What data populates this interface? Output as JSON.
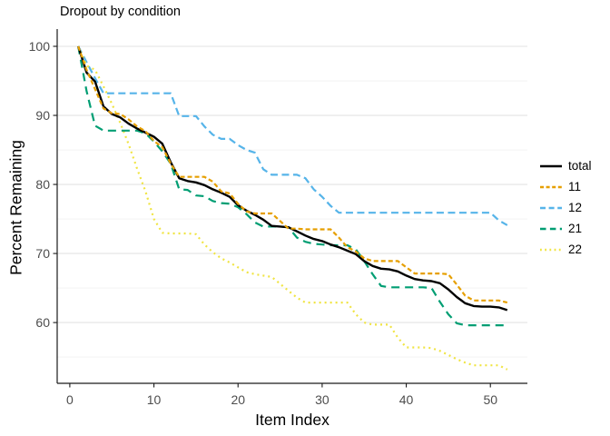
{
  "title": "Dropout by condition",
  "chart_data": {
    "type": "line",
    "title": "Dropout by condition",
    "xlabel": "Item Index",
    "ylabel": "Percent Remaining",
    "x_ticks": [
      0,
      10,
      20,
      30,
      40,
      50
    ],
    "y_ticks": [
      100,
      90,
      80,
      70,
      60
    ],
    "y_minor_ticks": [
      95,
      85,
      75,
      65,
      55
    ],
    "xlim": [
      -1.5,
      54.4
    ],
    "ylim": [
      51.2,
      102.5
    ],
    "x_start": 1,
    "grid": "horizontal-only",
    "legend_position": "right",
    "axis_color": "#1a1a1a",
    "tick_label_color": "#4d4d4d",
    "major_grid_color": "#e3e3e3",
    "minor_grid_color": "#f0f0f0",
    "series": [
      {
        "name": "total",
        "color": "#000000",
        "style": "solid",
        "values": [
          100,
          96.2,
          94.9,
          91.3,
          90.2,
          89.7,
          88.8,
          88.1,
          87.5,
          86.9,
          85.9,
          83.2,
          80.9,
          80.5,
          80.3,
          79.9,
          79.3,
          78.8,
          78.2,
          77.0,
          76.2,
          75.6,
          74.9,
          74.0,
          73.9,
          73.8,
          73.2,
          72.6,
          72.1,
          71.8,
          71.3,
          70.9,
          70.4,
          69.9,
          68.9,
          68.2,
          67.8,
          67.7,
          67.4,
          66.8,
          66.3,
          66.1,
          66.0,
          65.7,
          64.8,
          63.7,
          62.8,
          62.4,
          62.3,
          62.3,
          62.2,
          61.8
        ]
      },
      {
        "name": "11",
        "color": "#E69F00",
        "style": "dashed-short",
        "values": [
          100,
          96.6,
          93.8,
          91.0,
          90.3,
          90.2,
          89.4,
          88.4,
          87.7,
          86.3,
          85.4,
          83.0,
          81.1,
          81.1,
          81.1,
          81.1,
          80.4,
          79.0,
          78.7,
          77.2,
          76.1,
          75.8,
          75.8,
          75.8,
          74.7,
          73.6,
          73.6,
          73.5,
          73.5,
          73.5,
          73.5,
          72.3,
          70.9,
          70.3,
          69.3,
          68.9,
          68.9,
          68.9,
          68.9,
          68.0,
          67.1,
          67.1,
          67.1,
          67.1,
          67.0,
          65.5,
          63.9,
          63.2,
          63.2,
          63.2,
          63.2,
          62.9
        ]
      },
      {
        "name": "12",
        "color": "#56B4E9",
        "style": "dashed-medium",
        "values": [
          100,
          97.7,
          95.4,
          93.2,
          93.2,
          93.2,
          93.2,
          93.2,
          93.2,
          93.2,
          93.2,
          93.2,
          89.9,
          89.9,
          89.9,
          88.4,
          87.2,
          86.6,
          86.6,
          85.7,
          85.0,
          84.6,
          82.2,
          81.4,
          81.4,
          81.4,
          81.4,
          80.9,
          79.3,
          78.2,
          76.9,
          75.9,
          75.9,
          75.9,
          75.9,
          75.9,
          75.9,
          75.9,
          75.9,
          75.9,
          75.9,
          75.9,
          75.9,
          75.9,
          75.9,
          75.9,
          75.9,
          75.9,
          75.9,
          75.9,
          74.8,
          74.1
        ]
      },
      {
        "name": "21",
        "color": "#009E73",
        "style": "dashed-long",
        "values": [
          100,
          93.5,
          88.5,
          87.8,
          87.8,
          87.8,
          87.8,
          87.8,
          87.4,
          86.2,
          84.8,
          83.0,
          79.3,
          79.2,
          78.4,
          78.3,
          77.6,
          77.3,
          77.2,
          76.7,
          75.7,
          74.5,
          73.9,
          73.9,
          73.9,
          73.8,
          72.3,
          71.7,
          71.4,
          71.3,
          71.2,
          71.2,
          71.2,
          70.6,
          68.9,
          67.0,
          65.3,
          65.1,
          65.1,
          65.1,
          65.1,
          65.1,
          65.0,
          63.0,
          61.2,
          59.9,
          59.6,
          59.6,
          59.6,
          59.6,
          59.6,
          59.6
        ]
      },
      {
        "name": "22",
        "color": "#F0E442",
        "style": "dotted",
        "values": [
          100,
          97.2,
          96.6,
          94.2,
          91.7,
          88.9,
          85.8,
          82.3,
          79.0,
          75.0,
          73.0,
          72.9,
          72.9,
          72.9,
          72.8,
          71.3,
          70.2,
          69.3,
          68.7,
          68.0,
          67.3,
          67.0,
          66.8,
          66.6,
          65.6,
          64.6,
          63.6,
          62.9,
          62.9,
          62.9,
          62.9,
          62.9,
          62.9,
          61.2,
          60.0,
          59.7,
          59.7,
          59.7,
          57.8,
          56.4,
          56.4,
          56.4,
          56.3,
          55.9,
          55.3,
          54.7,
          54.2,
          53.8,
          53.8,
          53.8,
          53.8,
          53.2
        ]
      }
    ]
  }
}
